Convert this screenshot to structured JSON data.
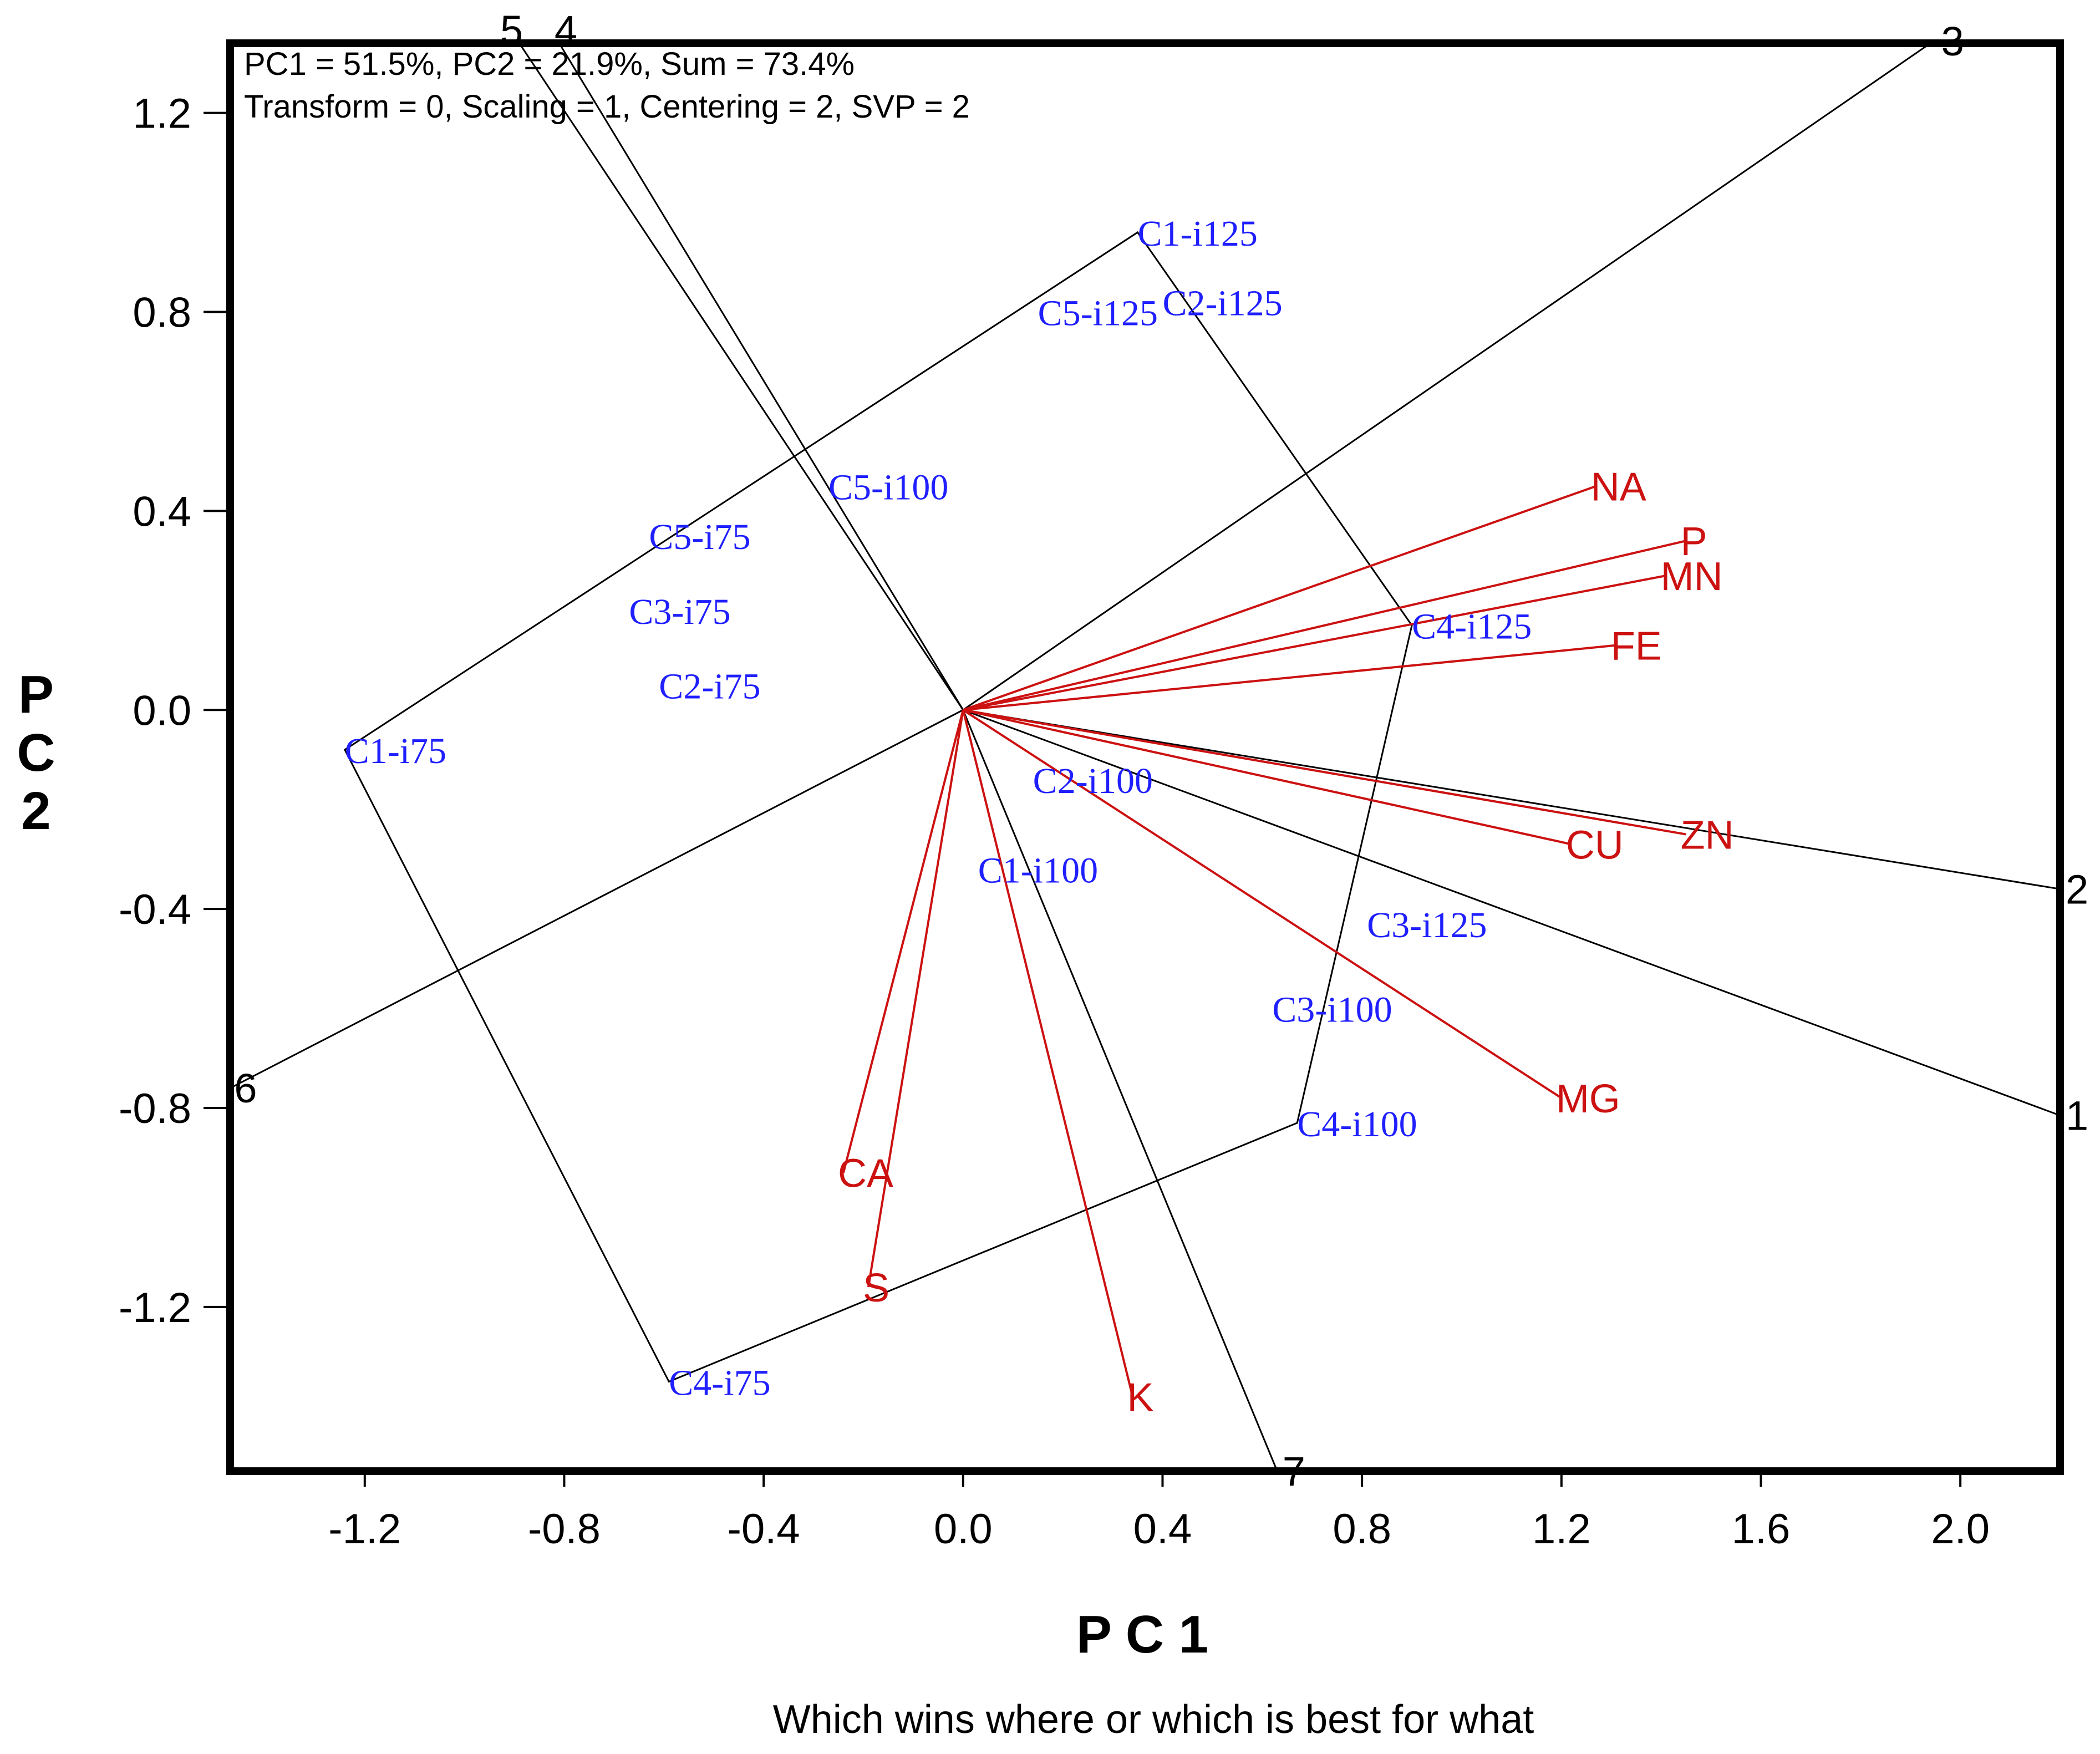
{
  "chart_data": {
    "type": "scatter",
    "title": "Which wins where or which is best for what",
    "xlabel": "P C 1",
    "ylabel": "P\nC\n2",
    "xlim": [
      -1.47,
      2.2
    ],
    "ylim": [
      -1.53,
      1.34
    ],
    "xticks": [
      "-1.2",
      "-0.8",
      "-0.4",
      "0.0",
      "0.4",
      "0.8",
      "1.2",
      "1.6",
      "2.0"
    ],
    "xtick_values": [
      -1.2,
      -0.8,
      -0.4,
      0.0,
      0.4,
      0.8,
      1.2,
      1.6,
      2.0
    ],
    "yticks": [
      "1.2",
      "0.8",
      "0.4",
      "0.0",
      "-0.4",
      "-0.8",
      "-1.2"
    ],
    "ytick_values": [
      1.2,
      0.8,
      0.4,
      0.0,
      -0.4,
      -0.8,
      -1.2
    ],
    "info_lines": [
      "PC1 = 51.5%, PC2 = 21.9%, Sum = 73.4%",
      "Transform = 0, Scaling = 1, Centering = 2, SVP = 2"
    ],
    "entries": [
      {
        "label": "C1-i125",
        "x": 0.35,
        "y": 0.96
      },
      {
        "label": "C2-i125",
        "x": 0.4,
        "y": 0.82
      },
      {
        "label": "C5-i125",
        "x": 0.15,
        "y": 0.8
      },
      {
        "label": "C5-i100",
        "x": -0.27,
        "y": 0.45
      },
      {
        "label": "C5-i75",
        "x": -0.63,
        "y": 0.35
      },
      {
        "label": "C3-i75",
        "x": -0.67,
        "y": 0.2
      },
      {
        "label": "C2-i75",
        "x": -0.61,
        "y": 0.05
      },
      {
        "label": "C1-i75",
        "x": -1.24,
        "y": -0.08
      },
      {
        "label": "C4-i125",
        "x": 0.9,
        "y": 0.17
      },
      {
        "label": "C2-i100",
        "x": 0.14,
        "y": -0.14
      },
      {
        "label": "C1-i100",
        "x": 0.03,
        "y": -0.32
      },
      {
        "label": "C3-i125",
        "x": 0.81,
        "y": -0.43
      },
      {
        "label": "C3-i100",
        "x": 0.62,
        "y": -0.6
      },
      {
        "label": "C4-i100",
        "x": 0.67,
        "y": -0.83
      },
      {
        "label": "C4-i75",
        "x": -0.59,
        "y": -1.35
      }
    ],
    "variables": [
      {
        "label": "NA",
        "x": 1.27,
        "y": 0.45
      },
      {
        "label": "P",
        "x": 1.45,
        "y": 0.34
      },
      {
        "label": "MN",
        "x": 1.41,
        "y": 0.27
      },
      {
        "label": "FE",
        "x": 1.31,
        "y": 0.13
      },
      {
        "label": "ZN",
        "x": 1.45,
        "y": -0.25
      },
      {
        "label": "CU",
        "x": 1.22,
        "y": -0.27
      },
      {
        "label": "MG",
        "x": 1.2,
        "y": -0.78
      },
      {
        "label": "CA",
        "x": -0.24,
        "y": -0.93
      },
      {
        "label": "S",
        "x": -0.19,
        "y": -1.16
      },
      {
        "label": "K",
        "x": 0.34,
        "y": -1.38
      }
    ],
    "polygon_order": [
      "C1-i125",
      "C4-i125",
      "C4-i100",
      "C4-i75",
      "C1-i75"
    ],
    "rays": [
      {
        "label": "1",
        "x": 2.2,
        "y": -0.815
      },
      {
        "label": "2",
        "x": 2.2,
        "y": -0.36
      },
      {
        "label": "3",
        "x": 1.94,
        "y": 1.34
      },
      {
        "label": "4",
        "x": -0.81,
        "y": 1.34
      },
      {
        "label": "5",
        "x": -0.89,
        "y": 1.34
      },
      {
        "label": "6",
        "x": -1.47,
        "y": -0.76
      },
      {
        "label": "7",
        "x": 0.63,
        "y": -1.53
      }
    ],
    "colors": {
      "entries": "#1f1fff",
      "variables": "#cc1111",
      "lines": "#000000"
    }
  }
}
